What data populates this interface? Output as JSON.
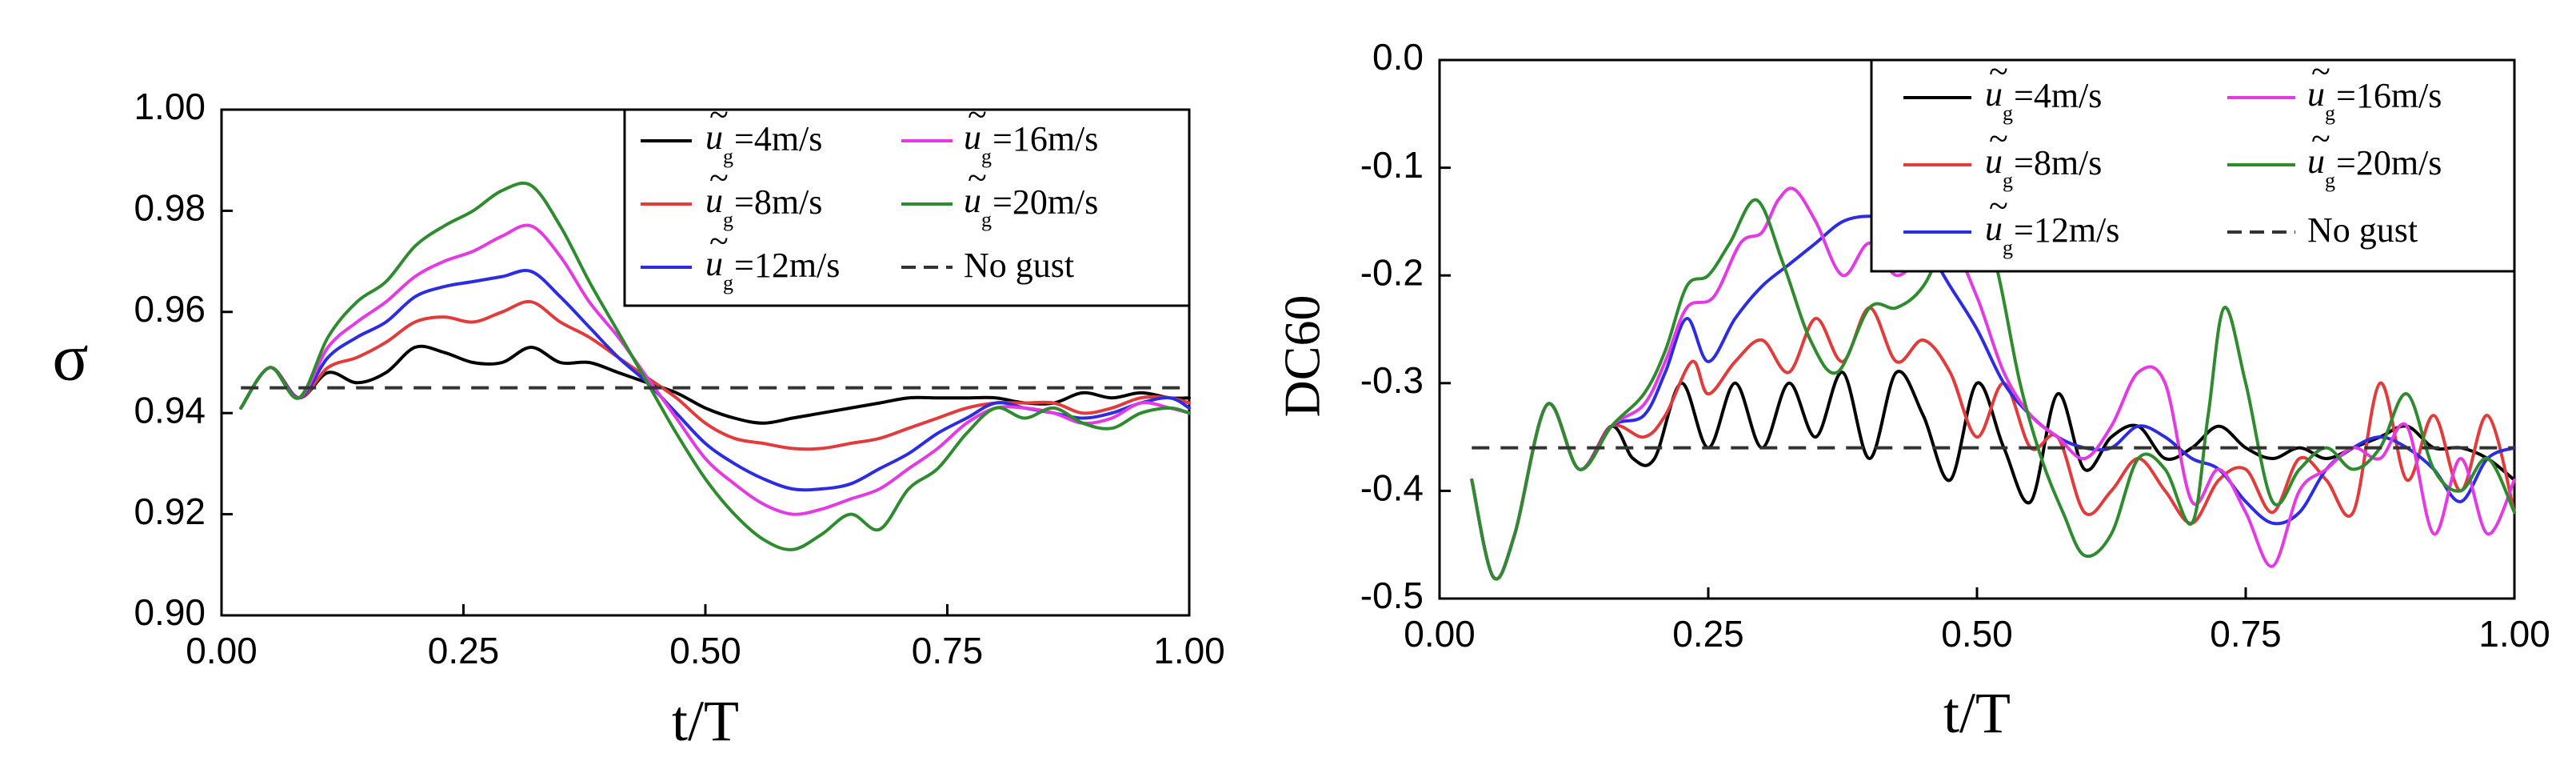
{
  "chart_data": [
    {
      "type": "line",
      "panel": "left",
      "title": "",
      "xlabel": "t/T",
      "ylabel": "σ",
      "xlim": [
        0.0,
        1.0
      ],
      "ylim": [
        0.9,
        1.0
      ],
      "xticks": [
        "0.00",
        "0.25",
        "0.50",
        "0.75",
        "1.00"
      ],
      "yticks": [
        "0.90",
        "0.92",
        "0.94",
        "0.96",
        "0.98",
        "1.00"
      ],
      "grid": false,
      "legend_position": "top-right",
      "series": [
        {
          "name": "ũg=4m/s",
          "legend_main": "=4m/s",
          "color": "#000000",
          "dash": false,
          "x": [
            0.02,
            0.05,
            0.08,
            0.11,
            0.14,
            0.17,
            0.2,
            0.23,
            0.26,
            0.29,
            0.32,
            0.35,
            0.38,
            0.41,
            0.44,
            0.47,
            0.5,
            0.53,
            0.56,
            0.59,
            0.62,
            0.65,
            0.68,
            0.71,
            0.74,
            0.77,
            0.8,
            0.83,
            0.86,
            0.89,
            0.92,
            0.95,
            0.98,
            1.0
          ],
          "y": [
            0.941,
            0.949,
            0.943,
            0.948,
            0.946,
            0.948,
            0.953,
            0.952,
            0.95,
            0.95,
            0.953,
            0.95,
            0.95,
            0.948,
            0.946,
            0.944,
            0.941,
            0.939,
            0.938,
            0.939,
            0.94,
            0.941,
            0.942,
            0.943,
            0.943,
            0.943,
            0.943,
            0.942,
            0.942,
            0.944,
            0.943,
            0.944,
            0.943,
            0.943
          ]
        },
        {
          "name": "ũg=8m/s",
          "legend_main": "=8m/s",
          "color": "#e23b3b",
          "dash": false,
          "x": [
            0.02,
            0.05,
            0.08,
            0.11,
            0.14,
            0.17,
            0.2,
            0.23,
            0.26,
            0.29,
            0.32,
            0.35,
            0.38,
            0.41,
            0.44,
            0.47,
            0.5,
            0.53,
            0.56,
            0.59,
            0.62,
            0.65,
            0.68,
            0.71,
            0.74,
            0.77,
            0.8,
            0.83,
            0.86,
            0.89,
            0.92,
            0.95,
            0.98,
            1.0
          ],
          "y": [
            0.941,
            0.949,
            0.943,
            0.949,
            0.951,
            0.954,
            0.958,
            0.959,
            0.958,
            0.96,
            0.962,
            0.958,
            0.955,
            0.951,
            0.947,
            0.943,
            0.938,
            0.935,
            0.934,
            0.933,
            0.933,
            0.934,
            0.935,
            0.937,
            0.939,
            0.941,
            0.942,
            0.942,
            0.942,
            0.94,
            0.941,
            0.943,
            0.943,
            0.942
          ]
        },
        {
          "name": "ũg=12m/s",
          "legend_main": "=12m/s",
          "color": "#2c2ce0",
          "dash": false,
          "x": [
            0.02,
            0.05,
            0.08,
            0.11,
            0.14,
            0.17,
            0.2,
            0.23,
            0.26,
            0.29,
            0.32,
            0.35,
            0.38,
            0.41,
            0.44,
            0.47,
            0.5,
            0.53,
            0.56,
            0.59,
            0.62,
            0.65,
            0.68,
            0.71,
            0.74,
            0.77,
            0.8,
            0.83,
            0.86,
            0.89,
            0.92,
            0.95,
            0.98,
            1.0
          ],
          "y": [
            0.941,
            0.949,
            0.943,
            0.951,
            0.955,
            0.958,
            0.963,
            0.965,
            0.966,
            0.967,
            0.968,
            0.963,
            0.957,
            0.951,
            0.946,
            0.94,
            0.934,
            0.93,
            0.927,
            0.925,
            0.925,
            0.926,
            0.929,
            0.932,
            0.936,
            0.939,
            0.942,
            0.941,
            0.94,
            0.939,
            0.94,
            0.942,
            0.943,
            0.941
          ]
        },
        {
          "name": "ũg=16m/s",
          "legend_main": "=16m/s",
          "color": "#e33be3",
          "dash": false,
          "x": [
            0.02,
            0.05,
            0.08,
            0.11,
            0.14,
            0.17,
            0.2,
            0.23,
            0.26,
            0.29,
            0.32,
            0.35,
            0.38,
            0.41,
            0.44,
            0.47,
            0.5,
            0.53,
            0.56,
            0.59,
            0.62,
            0.65,
            0.68,
            0.71,
            0.74,
            0.77,
            0.8,
            0.83,
            0.86,
            0.89,
            0.92,
            0.95,
            0.98,
            1.0
          ],
          "y": [
            0.941,
            0.949,
            0.943,
            0.953,
            0.958,
            0.962,
            0.967,
            0.97,
            0.972,
            0.975,
            0.977,
            0.971,
            0.962,
            0.955,
            0.947,
            0.939,
            0.931,
            0.926,
            0.922,
            0.92,
            0.921,
            0.923,
            0.925,
            0.929,
            0.933,
            0.938,
            0.941,
            0.941,
            0.94,
            0.938,
            0.939,
            0.942,
            0.941,
            0.94
          ]
        },
        {
          "name": "ũg=20m/s",
          "legend_main": "=20m/s",
          "color": "#2e8b2e",
          "dash": false,
          "x": [
            0.02,
            0.05,
            0.08,
            0.11,
            0.14,
            0.17,
            0.2,
            0.23,
            0.26,
            0.29,
            0.32,
            0.35,
            0.38,
            0.41,
            0.44,
            0.47,
            0.5,
            0.53,
            0.56,
            0.59,
            0.62,
            0.65,
            0.68,
            0.71,
            0.74,
            0.77,
            0.8,
            0.83,
            0.86,
            0.89,
            0.92,
            0.95,
            0.98,
            1.0
          ],
          "y": [
            0.941,
            0.949,
            0.943,
            0.955,
            0.962,
            0.966,
            0.973,
            0.977,
            0.98,
            0.984,
            0.985,
            0.977,
            0.966,
            0.956,
            0.946,
            0.936,
            0.927,
            0.92,
            0.915,
            0.913,
            0.916,
            0.92,
            0.917,
            0.925,
            0.929,
            0.936,
            0.941,
            0.939,
            0.941,
            0.938,
            0.937,
            0.94,
            0.941,
            0.94
          ]
        },
        {
          "name": "No gust",
          "legend_main": "No gust",
          "color": "#333333",
          "dash": true,
          "x": [
            0.02,
            1.0
          ],
          "y": [
            0.945,
            0.945
          ]
        }
      ]
    },
    {
      "type": "line",
      "panel": "right",
      "title": "",
      "xlabel": "t/T",
      "ylabel": "DC60",
      "xlim": [
        0.0,
        1.0
      ],
      "ylim": [
        -0.5,
        0.0
      ],
      "xticks": [
        "0.00",
        "0.25",
        "0.50",
        "0.75",
        "1.00"
      ],
      "yticks": [
        "-0.5",
        "-0.4",
        "-0.3",
        "-0.2",
        "-0.1",
        "0.0"
      ],
      "grid": false,
      "legend_position": "top-right",
      "series": [
        {
          "name": "ũg=4m/s",
          "legend_main": "=4m/s",
          "color": "#000000",
          "dash": false,
          "x": [
            0.03,
            0.05,
            0.07,
            0.1,
            0.13,
            0.16,
            0.18,
            0.2,
            0.225,
            0.25,
            0.275,
            0.3,
            0.325,
            0.35,
            0.375,
            0.4,
            0.425,
            0.45,
            0.475,
            0.5,
            0.525,
            0.55,
            0.575,
            0.6,
            0.625,
            0.65,
            0.675,
            0.7,
            0.725,
            0.75,
            0.775,
            0.8,
            0.825,
            0.85,
            0.875,
            0.9,
            0.925,
            0.95,
            0.975,
            1.0
          ],
          "y": [
            -0.39,
            -0.48,
            -0.44,
            -0.32,
            -0.38,
            -0.34,
            -0.37,
            -0.37,
            -0.3,
            -0.36,
            -0.3,
            -0.36,
            -0.3,
            -0.35,
            -0.29,
            -0.37,
            -0.29,
            -0.33,
            -0.39,
            -0.3,
            -0.36,
            -0.41,
            -0.31,
            -0.38,
            -0.35,
            -0.34,
            -0.37,
            -0.36,
            -0.34,
            -0.36,
            -0.37,
            -0.36,
            -0.37,
            -0.36,
            -0.35,
            -0.34,
            -0.36,
            -0.36,
            -0.37,
            -0.39
          ]
        },
        {
          "name": "ũg=8m/s",
          "legend_main": "=8m/s",
          "color": "#e23b3b",
          "dash": false,
          "x": [
            0.03,
            0.05,
            0.07,
            0.1,
            0.13,
            0.16,
            0.19,
            0.21,
            0.235,
            0.25,
            0.275,
            0.3,
            0.325,
            0.35,
            0.375,
            0.4,
            0.425,
            0.45,
            0.475,
            0.5,
            0.525,
            0.55,
            0.575,
            0.6,
            0.625,
            0.65,
            0.675,
            0.7,
            0.725,
            0.75,
            0.775,
            0.8,
            0.825,
            0.85,
            0.875,
            0.9,
            0.925,
            0.95,
            0.975,
            1.0
          ],
          "y": [
            -0.39,
            -0.48,
            -0.44,
            -0.32,
            -0.38,
            -0.34,
            -0.35,
            -0.33,
            -0.28,
            -0.31,
            -0.28,
            -0.26,
            -0.29,
            -0.24,
            -0.28,
            -0.23,
            -0.28,
            -0.26,
            -0.29,
            -0.35,
            -0.3,
            -0.36,
            -0.35,
            -0.42,
            -0.4,
            -0.37,
            -0.4,
            -0.43,
            -0.39,
            -0.38,
            -0.42,
            -0.37,
            -0.39,
            -0.42,
            -0.3,
            -0.39,
            -0.33,
            -0.4,
            -0.33,
            -0.42
          ]
        },
        {
          "name": "ũg=12m/s",
          "legend_main": "=12m/s",
          "color": "#2c2ce0",
          "dash": false,
          "x": [
            0.03,
            0.05,
            0.07,
            0.1,
            0.13,
            0.16,
            0.19,
            0.21,
            0.23,
            0.25,
            0.275,
            0.3,
            0.325,
            0.35,
            0.375,
            0.4,
            0.425,
            0.45,
            0.475,
            0.5,
            0.525,
            0.55,
            0.575,
            0.6,
            0.625,
            0.65,
            0.675,
            0.7,
            0.725,
            0.75,
            0.775,
            0.8,
            0.825,
            0.85,
            0.875,
            0.9,
            0.925,
            0.95,
            0.975,
            1.0
          ],
          "y": [
            -0.39,
            -0.48,
            -0.44,
            -0.32,
            -0.38,
            -0.34,
            -0.33,
            -0.29,
            -0.24,
            -0.28,
            -0.24,
            -0.21,
            -0.19,
            -0.17,
            -0.15,
            -0.145,
            -0.15,
            -0.17,
            -0.21,
            -0.25,
            -0.3,
            -0.33,
            -0.35,
            -0.36,
            -0.36,
            -0.34,
            -0.35,
            -0.37,
            -0.38,
            -0.41,
            -0.43,
            -0.42,
            -0.38,
            -0.36,
            -0.35,
            -0.36,
            -0.38,
            -0.41,
            -0.37,
            -0.36
          ]
        },
        {
          "name": "ũg=16m/s",
          "legend_main": "=16m/s",
          "color": "#e33be3",
          "dash": false,
          "x": [
            0.03,
            0.05,
            0.07,
            0.1,
            0.13,
            0.16,
            0.19,
            0.21,
            0.23,
            0.255,
            0.28,
            0.3,
            0.315,
            0.33,
            0.35,
            0.375,
            0.4,
            0.425,
            0.45,
            0.475,
            0.5,
            0.525,
            0.55,
            0.575,
            0.6,
            0.625,
            0.65,
            0.675,
            0.7,
            0.725,
            0.75,
            0.775,
            0.8,
            0.825,
            0.85,
            0.875,
            0.9,
            0.925,
            0.95,
            0.975,
            1.0
          ],
          "y": [
            -0.39,
            -0.48,
            -0.44,
            -0.32,
            -0.38,
            -0.34,
            -0.32,
            -0.28,
            -0.23,
            -0.22,
            -0.17,
            -0.16,
            -0.13,
            -0.12,
            -0.15,
            -0.2,
            -0.17,
            -0.2,
            -0.18,
            -0.17,
            -0.22,
            -0.29,
            -0.33,
            -0.35,
            -0.37,
            -0.34,
            -0.29,
            -0.3,
            -0.41,
            -0.38,
            -0.42,
            -0.47,
            -0.4,
            -0.38,
            -0.36,
            -0.37,
            -0.34,
            -0.44,
            -0.37,
            -0.44,
            -0.39
          ]
        },
        {
          "name": "ũg=20m/s",
          "legend_main": "=20m/s",
          "color": "#2e8b2e",
          "dash": false,
          "x": [
            0.03,
            0.05,
            0.07,
            0.1,
            0.13,
            0.16,
            0.19,
            0.21,
            0.23,
            0.25,
            0.27,
            0.295,
            0.32,
            0.345,
            0.37,
            0.4,
            0.425,
            0.45,
            0.475,
            0.5,
            0.52,
            0.54,
            0.56,
            0.58,
            0.6,
            0.625,
            0.65,
            0.675,
            0.7,
            0.715,
            0.73,
            0.75,
            0.775,
            0.8,
            0.825,
            0.85,
            0.875,
            0.9,
            0.925,
            0.95,
            0.975,
            1.0
          ],
          "y": [
            -0.39,
            -0.48,
            -0.44,
            -0.32,
            -0.38,
            -0.34,
            -0.31,
            -0.27,
            -0.21,
            -0.2,
            -0.17,
            -0.13,
            -0.19,
            -0.26,
            -0.29,
            -0.23,
            -0.23,
            -0.21,
            -0.16,
            -0.13,
            -0.2,
            -0.3,
            -0.37,
            -0.42,
            -0.46,
            -0.44,
            -0.37,
            -0.38,
            -0.43,
            -0.33,
            -0.23,
            -0.3,
            -0.41,
            -0.38,
            -0.36,
            -0.38,
            -0.36,
            -0.31,
            -0.38,
            -0.4,
            -0.37,
            -0.42
          ]
        },
        {
          "name": "No gust",
          "legend_main": "No gust",
          "color": "#333333",
          "dash": true,
          "x": [
            0.03,
            1.0
          ],
          "y": [
            -0.36,
            -0.36
          ]
        }
      ]
    }
  ]
}
